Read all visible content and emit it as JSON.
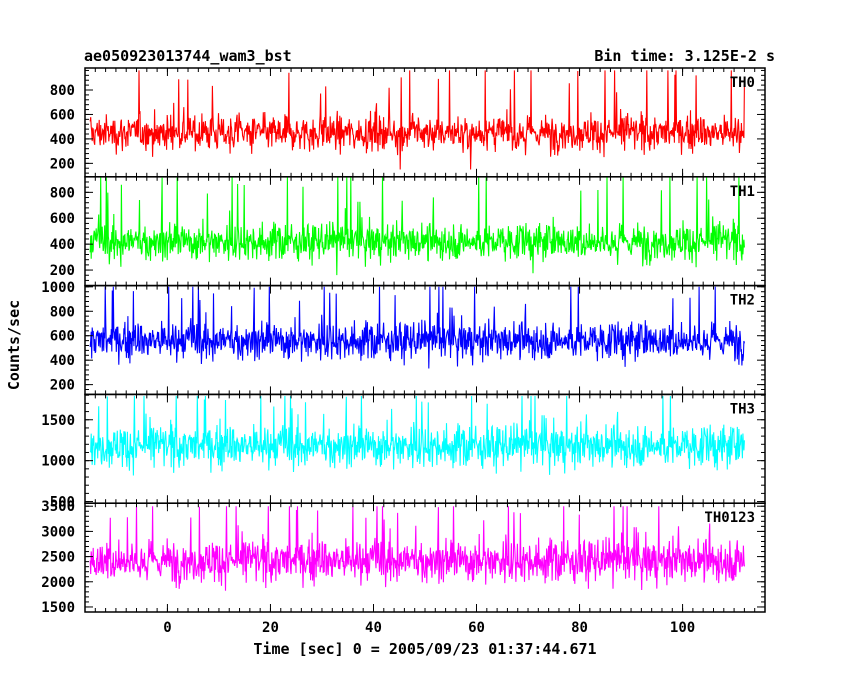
{
  "chart_data": {
    "type": "line",
    "title": "ae050923013744_wam3_bst",
    "subtitle": "Bin time: 3.125E-2 s",
    "xlabel": "Time [sec] 0 = 2005/09/23 01:37:44.671",
    "ylabel": "Counts/sec",
    "xlim": [
      -16,
      116
    ],
    "data_x_range": [
      -15,
      112
    ],
    "x_ticks": [
      0,
      20,
      40,
      60,
      80,
      100
    ],
    "x_tick_labels": [
      "0",
      "20",
      "40",
      "60",
      "80",
      "100"
    ],
    "x_minor_step": 2,
    "series": [
      {
        "name": "TH0",
        "color": "#ff0000",
        "ylim": [
          90,
          980
        ],
        "mean": 450,
        "spread": 110,
        "low": 150,
        "high": 960,
        "y_ticks": [
          200,
          400,
          600,
          800
        ],
        "y_tick_labels": [
          "200",
          "400",
          "600",
          "800"
        ]
      },
      {
        "name": "TH1",
        "color": "#00ff00",
        "ylim": [
          80,
          920
        ],
        "mean": 420,
        "spread": 110,
        "low": 130,
        "high": 920,
        "y_ticks": [
          200,
          400,
          600,
          800
        ],
        "y_tick_labels": [
          "200",
          "400",
          "600",
          "800"
        ]
      },
      {
        "name": "TH2",
        "color": "#0000ff",
        "ylim": [
          120,
          1010
        ],
        "mean": 560,
        "spread": 120,
        "low": 180,
        "high": 1000,
        "y_ticks": [
          200,
          400,
          600,
          800,
          1000
        ],
        "y_tick_labels": [
          "200",
          "400",
          "600",
          "800",
          "1000"
        ]
      },
      {
        "name": "TH3",
        "color": "#00ffff",
        "ylim": [
          480,
          1810
        ],
        "mean": 1180,
        "spread": 200,
        "low": 600,
        "high": 1790,
        "y_ticks": [
          500,
          1000,
          1500
        ],
        "y_tick_labels": [
          "500",
          "1000",
          "1500"
        ]
      },
      {
        "name": "TH0123",
        "color": "#ff00ff",
        "ylim": [
          1400,
          3560
        ],
        "mean": 2420,
        "spread": 330,
        "low": 1500,
        "high": 3500,
        "y_ticks": [
          1500,
          2000,
          2500,
          3000,
          3500
        ],
        "y_tick_labels": [
          "1500",
          "2000",
          "2500",
          "3000",
          "3500"
        ]
      }
    ]
  }
}
